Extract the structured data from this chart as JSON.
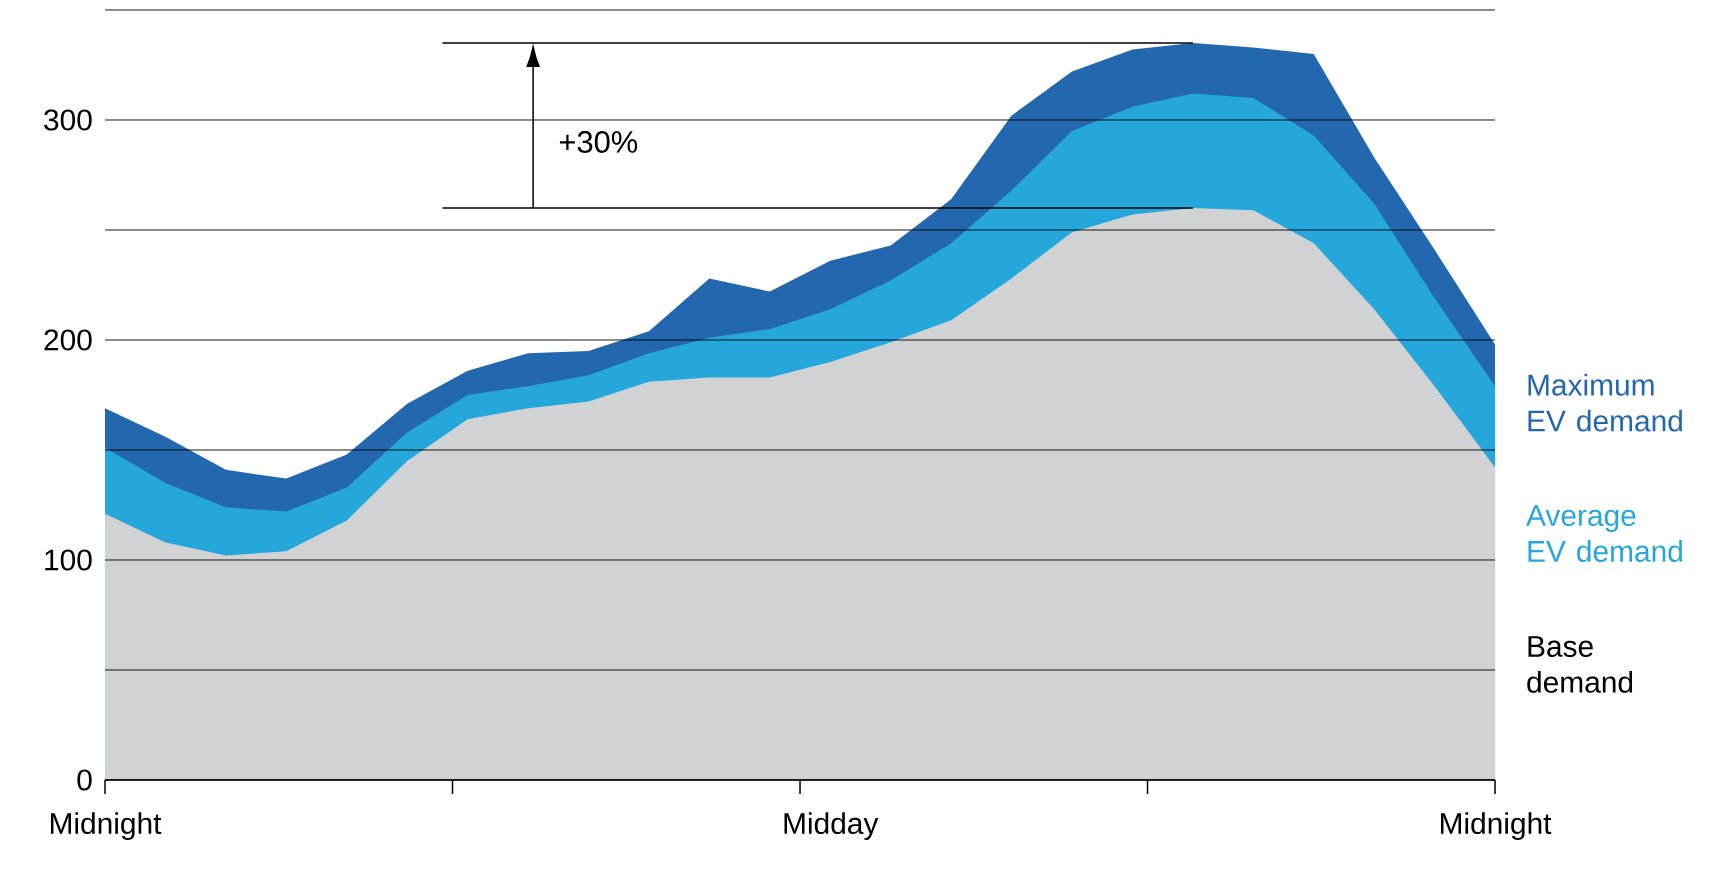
{
  "chart_data": {
    "type": "area",
    "categories": [
      "Midnight",
      null,
      null,
      null,
      null,
      null,
      null,
      null,
      null,
      null,
      null,
      null,
      "Midday",
      null,
      null,
      null,
      null,
      null,
      null,
      null,
      null,
      null,
      null,
      "Midnight"
    ],
    "series": [
      {
        "name": "Maximum EV demand",
        "color": "#2368ae",
        "values": [
          169,
          156,
          141,
          137,
          148,
          171,
          186,
          194,
          195,
          204,
          228,
          222,
          236,
          243,
          264,
          302,
          322,
          332,
          335,
          333,
          330,
          283,
          241,
          198
        ]
      },
      {
        "name": "Average EV demand",
        "color": "#26a7dc",
        "values": [
          151,
          135,
          124,
          122,
          133,
          158,
          175,
          179,
          184,
          194,
          201,
          205,
          214,
          227,
          244,
          268,
          295,
          306,
          312,
          310,
          293,
          262,
          219,
          179
        ]
      },
      {
        "name": "Base demand",
        "color": "#d1d2d4",
        "values": [
          121,
          108,
          102,
          104,
          118,
          145,
          164,
          169,
          172,
          181,
          183,
          183,
          190,
          199,
          209,
          228,
          249,
          257,
          260,
          259,
          244,
          214,
          179,
          142
        ]
      }
    ],
    "ylim": [
      0,
      350
    ],
    "yticks": [
      0,
      {
        "value": 50,
        "label": null
      },
      100,
      {
        "value": 150,
        "label": null
      },
      200,
      {
        "value": 250,
        "label": null
      },
      300,
      {
        "value": 350,
        "label": null
      }
    ],
    "grid": "y",
    "ref_lines": [
      {
        "axis": "y",
        "value": 335,
        "color": "#000000"
      },
      {
        "axis": "y",
        "value": 260,
        "color": "#000000"
      }
    ],
    "annotations": [
      "+30%"
    ]
  }
}
